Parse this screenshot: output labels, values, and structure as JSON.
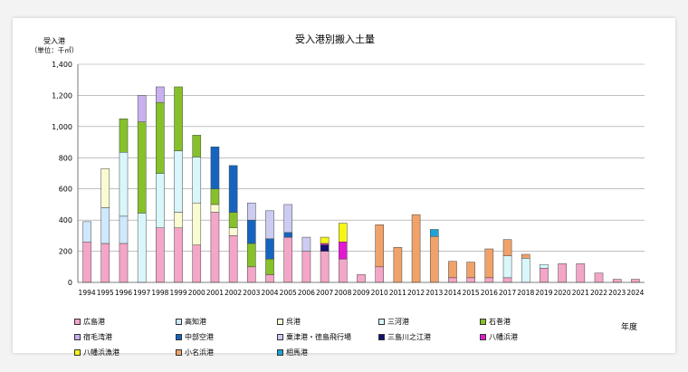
{
  "chart_data": {
    "type": "bar",
    "stacked": true,
    "title": "受入港別搬入土量",
    "ylabel": "受入港",
    "yunit": "（単位：千㎥）",
    "xlabel": "年度",
    "ylim": [
      0,
      1400
    ],
    "yticks": [
      0,
      200,
      400,
      600,
      800,
      1000,
      1200,
      1400
    ],
    "ytick_labels": [
      "0",
      "200",
      "400",
      "600",
      "800",
      "1,000",
      "1,200",
      "1,400"
    ],
    "grid": true,
    "legend_position": "bottom",
    "categories": [
      "1994",
      "1995",
      "1996",
      "1997",
      "1998",
      "1999",
      "2000",
      "2001",
      "2002",
      "2003",
      "2004",
      "2005",
      "2006",
      "2007",
      "2008",
      "2009",
      "2010",
      "2011",
      "2012",
      "2013",
      "2014",
      "2015",
      "2016",
      "2017",
      "2018",
      "2019",
      "2020",
      "2021",
      "2022",
      "2023",
      "2024"
    ],
    "series": [
      {
        "name": "広島港",
        "color": "#f4a6c8",
        "values": [
          260,
          250,
          250,
          0,
          350,
          350,
          240,
          450,
          300,
          100,
          50,
          290,
          200,
          200,
          150,
          50,
          100,
          0,
          0,
          0,
          30,
          30,
          30,
          30,
          0,
          90,
          120,
          120,
          60,
          20,
          20
        ]
      },
      {
        "name": "高知港",
        "color": "#cfe8fb",
        "values": [
          130,
          230,
          175,
          0,
          0,
          0,
          0,
          0,
          0,
          0,
          0,
          0,
          0,
          0,
          0,
          0,
          0,
          0,
          0,
          0,
          0,
          0,
          0,
          0,
          0,
          0,
          0,
          0,
          0,
          0,
          0
        ]
      },
      {
        "name": "呉港",
        "color": "#fbfbd2",
        "values": [
          0,
          250,
          0,
          0,
          0,
          100,
          270,
          50,
          50,
          0,
          0,
          0,
          0,
          0,
          0,
          0,
          0,
          0,
          0,
          0,
          0,
          0,
          0,
          0,
          0,
          0,
          0,
          0,
          0,
          0,
          0
        ]
      },
      {
        "name": "三河港",
        "color": "#d9f7fb",
        "values": [
          0,
          0,
          410,
          445,
          350,
          395,
          295,
          0,
          0,
          0,
          0,
          0,
          0,
          0,
          0,
          0,
          0,
          0,
          0,
          0,
          0,
          0,
          0,
          140,
          155,
          25,
          0,
          0,
          0,
          0,
          0
        ]
      },
      {
        "name": "石巻港",
        "color": "#86c12a",
        "values": [
          0,
          0,
          215,
          585,
          455,
          410,
          140,
          100,
          100,
          150,
          100,
          0,
          0,
          0,
          0,
          0,
          0,
          0,
          0,
          0,
          0,
          0,
          0,
          0,
          0,
          0,
          0,
          0,
          0,
          0,
          0
        ]
      },
      {
        "name": "宿毛湾港",
        "color": "#c8b0ee",
        "values": [
          0,
          0,
          0,
          170,
          100,
          0,
          0,
          0,
          0,
          0,
          0,
          0,
          0,
          0,
          0,
          0,
          0,
          0,
          0,
          0,
          0,
          0,
          0,
          0,
          0,
          0,
          0,
          0,
          0,
          0,
          0
        ]
      },
      {
        "name": "中部空港",
        "color": "#1565c0",
        "values": [
          0,
          0,
          0,
          0,
          0,
          0,
          0,
          270,
          300,
          150,
          130,
          30,
          0,
          0,
          0,
          0,
          0,
          0,
          0,
          0,
          0,
          0,
          0,
          0,
          0,
          0,
          0,
          0,
          0,
          0,
          0
        ]
      },
      {
        "name": "粟津港・徳島飛行場",
        "color": "#ccccf2",
        "values": [
          0,
          0,
          0,
          0,
          0,
          0,
          0,
          0,
          0,
          110,
          180,
          180,
          90,
          0,
          0,
          0,
          0,
          0,
          0,
          0,
          0,
          0,
          0,
          0,
          0,
          0,
          0,
          0,
          0,
          0,
          0
        ]
      },
      {
        "name": "三島川之江港",
        "color": "#12126e",
        "values": [
          0,
          0,
          0,
          0,
          0,
          0,
          0,
          0,
          0,
          0,
          0,
          0,
          0,
          40,
          0,
          0,
          0,
          0,
          0,
          0,
          0,
          0,
          0,
          0,
          0,
          0,
          0,
          0,
          0,
          0,
          0
        ]
      },
      {
        "name": "八幡浜港",
        "color": "#e31ad0",
        "values": [
          0,
          0,
          0,
          0,
          0,
          0,
          0,
          0,
          0,
          0,
          0,
          0,
          0,
          10,
          110,
          0,
          0,
          0,
          0,
          0,
          0,
          0,
          0,
          0,
          0,
          0,
          0,
          0,
          0,
          0,
          0
        ]
      },
      {
        "name": "八幡浜漁港",
        "color": "#f6f615",
        "values": [
          0,
          0,
          0,
          0,
          0,
          0,
          0,
          0,
          0,
          0,
          0,
          0,
          0,
          40,
          120,
          0,
          0,
          0,
          0,
          0,
          0,
          0,
          0,
          0,
          0,
          0,
          0,
          0,
          0,
          0,
          0
        ]
      },
      {
        "name": "小名浜港",
        "color": "#f0a26a",
        "values": [
          0,
          0,
          0,
          0,
          0,
          0,
          0,
          0,
          0,
          0,
          0,
          0,
          0,
          0,
          0,
          0,
          270,
          225,
          435,
          295,
          105,
          100,
          185,
          105,
          25,
          0,
          0,
          0,
          0,
          0,
          0
        ]
      },
      {
        "name": "相馬港",
        "color": "#1ea2d8",
        "values": [
          0,
          0,
          0,
          0,
          0,
          0,
          0,
          0,
          0,
          0,
          0,
          0,
          0,
          0,
          0,
          0,
          0,
          0,
          0,
          45,
          0,
          0,
          0,
          0,
          0,
          0,
          0,
          0,
          0,
          0,
          0
        ]
      }
    ]
  }
}
